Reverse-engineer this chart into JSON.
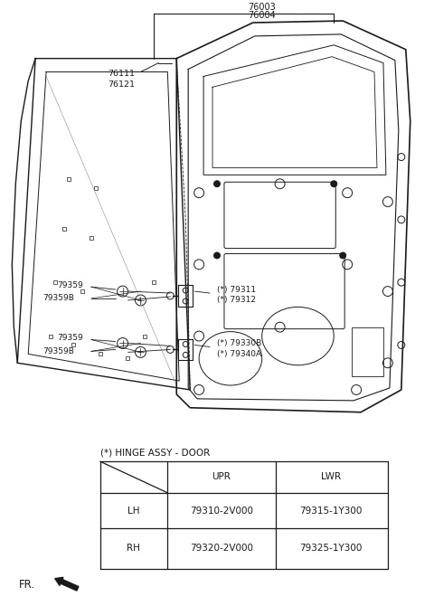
{
  "bg_color": "#ffffff",
  "line_color": "#1a1a1a",
  "text_color": "#1a1a1a",
  "title_76003": "76003",
  "title_76004": "76004",
  "label_76111": "76111",
  "label_76121": "76121",
  "table_title": "(*) HINGE ASSY - DOOR",
  "table_header_upr": "UPR",
  "table_header_lwr": "LWR",
  "table_lh": "LH",
  "table_rh": "RH",
  "table_lh_upr": "79310-2V000",
  "table_lh_lwr": "79315-1Y300",
  "table_rh_upr": "79320-2V000",
  "table_rh_lwr": "79325-1Y300",
  "fr_label": "FR.",
  "label_79311": "(*) 79311",
  "label_79312": "(*) 79312",
  "label_79330B": "(*) 79330B",
  "label_79340A": "(*) 79340A",
  "label_79359": "79359",
  "label_79359B": "79359B"
}
